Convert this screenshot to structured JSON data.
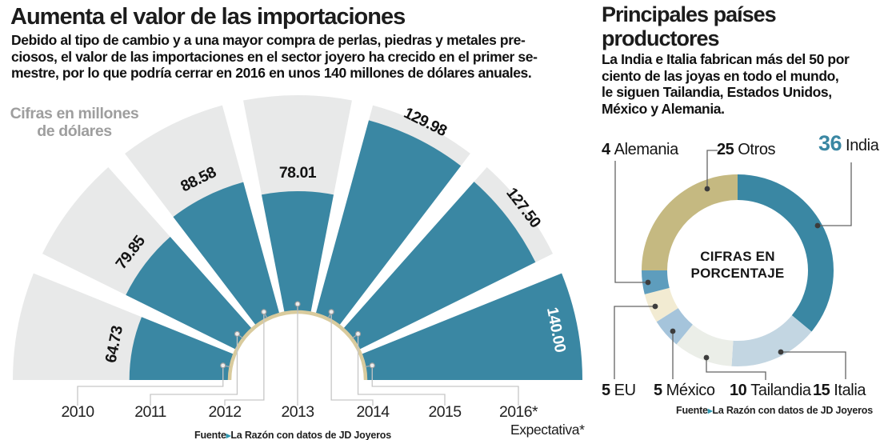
{
  "left_chart": {
    "title": "Aumenta el valor de las importaciones",
    "subtitle_lines": [
      "Debido al tipo de cambio y a una mayor compra de perlas, piedras y metales pre-",
      "ciosos, el valor de las importaciones en el sector joyero ha crecido en el primer se-",
      "mestre, por lo que podría cerrar en 2016 en unos 140 millones de dólares anuales."
    ],
    "unit_label_line1": "Cifras en millones",
    "unit_label_line2": "de dólares",
    "expectation_note": "Expectativa*",
    "source_prefix": "Fuente",
    "source_arrow": "▸",
    "source_text": "La Razón con datos de JD Joyeros"
  },
  "right_chart": {
    "title_line1": "Principales países",
    "title_line2": "productores",
    "description_lines": [
      "La India e Italia fabrican más del 50 por",
      "ciento de las joyas en todo el mundo,",
      "le siguen Tailandia, Estados Unidos,",
      "México y Alemania."
    ],
    "center_label_line1": "CIFRAS EN",
    "center_label_line2": "PORCENTAJE",
    "source_prefix": "Fuente",
    "source_arrow": "▸",
    "source_text": "La Razón con datos de JD Joyeros"
  },
  "chart_data": [
    {
      "type": "bar",
      "subtype": "radial-fan",
      "title": "Aumenta el valor de las importaciones",
      "unit": "Cifras en millones de dólares",
      "categories": [
        "2010",
        "2011",
        "2012",
        "2013",
        "2014",
        "2015",
        "2016*"
      ],
      "values": [
        64.73,
        79.85,
        88.58,
        78.01,
        129.98,
        127.5,
        140.0
      ],
      "value_labels": [
        "64.73",
        "79.85",
        "88.58",
        "78.01",
        "129.98",
        "127.50",
        "140.00"
      ],
      "max_value": 140,
      "note": "Expectativa*",
      "colors": {
        "fill": "#3a87a3",
        "track": "#e8e9e9",
        "arc": "#d9cb9d"
      }
    },
    {
      "type": "pie",
      "subtype": "donut",
      "title": "Principales países productores",
      "center_label": "CIFRAS EN PORCENTAJE",
      "unit": "percent",
      "slices": [
        {
          "label": "India",
          "value": 36,
          "color": "#3a87a3",
          "highlight": true
        },
        {
          "label": "Italia",
          "value": 15,
          "color": "#c3d6e2",
          "highlight": false
        },
        {
          "label": "Tailandia",
          "value": 10,
          "color": "#ebeee8",
          "highlight": false
        },
        {
          "label": "México",
          "value": 5,
          "color": "#a5c4db",
          "highlight": false
        },
        {
          "label": "EU",
          "value": 5,
          "color": "#f2ebd2",
          "highlight": false
        },
        {
          "label": "Alemania",
          "value": 4,
          "color": "#5e9dbd",
          "highlight": false
        },
        {
          "label": "Otros",
          "value": 25,
          "color": "#c5b981",
          "highlight": false
        }
      ]
    }
  ]
}
